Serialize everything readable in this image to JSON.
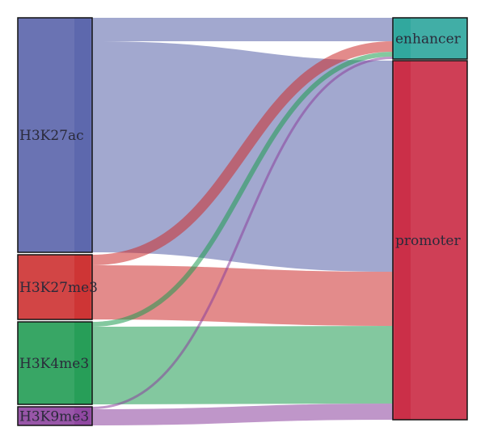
{
  "chart_data": {
    "type": "sankey",
    "title": "",
    "sources": [
      {
        "id": "H3K27ac",
        "label": "H3K27ac",
        "color": "#5560a8"
      },
      {
        "id": "H3K27me3",
        "label": "H3K27me3",
        "color": "#cc2b2b"
      },
      {
        "id": "H3K4me3",
        "label": "H3K4me3",
        "color": "#1d9a50"
      },
      {
        "id": "H3K9me3",
        "label": "H3K9me3",
        "color": "#8a3f9c"
      }
    ],
    "targets": [
      {
        "id": "enhancer",
        "label": "enhancer",
        "color": "#27a39a"
      },
      {
        "id": "promoter",
        "label": "promoter",
        "color": "#c8243f"
      }
    ],
    "links": [
      {
        "source": "H3K27ac",
        "target": "enhancer",
        "value": 29
      },
      {
        "source": "H3K27ac",
        "target": "promoter",
        "value": 261
      },
      {
        "source": "H3K27me3",
        "target": "enhancer",
        "value": 13
      },
      {
        "source": "H3K27me3",
        "target": "promoter",
        "value": 67
      },
      {
        "source": "H3K4me3",
        "target": "enhancer",
        "value": 6
      },
      {
        "source": "H3K4me3",
        "target": "promoter",
        "value": 96
      },
      {
        "source": "H3K9me3",
        "target": "enhancer",
        "value": 3
      },
      {
        "source": "H3K9me3",
        "target": "promoter",
        "value": 20
      }
    ]
  }
}
